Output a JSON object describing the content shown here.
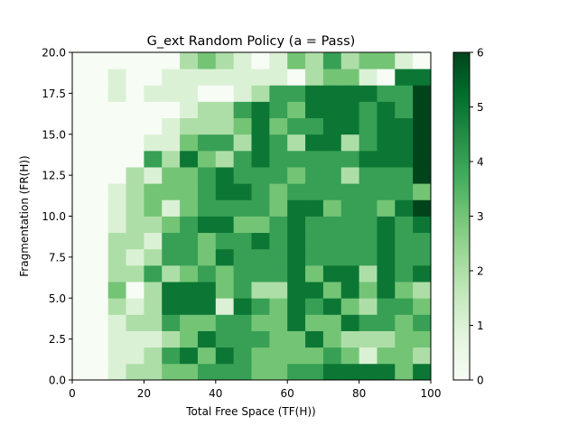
{
  "chart_data": {
    "type": "heatmap",
    "title": "G_ext Random Policy (a = Pass)",
    "xlabel": "Total Free Space (TF(H))",
    "ylabel": "Fragmentation (FR(H))",
    "xlim": [
      0,
      100
    ],
    "ylim": [
      0,
      20
    ],
    "x_ticks": [
      "0",
      "20",
      "40",
      "60",
      "80",
      "100"
    ],
    "y_ticks": [
      "0.0",
      "2.5",
      "5.0",
      "7.5",
      "10.0",
      "12.5",
      "15.0",
      "17.5",
      "20.0"
    ],
    "colorbar": {
      "colormap": "Greens",
      "range": [
        0,
        6
      ],
      "ticks": [
        "0",
        "1",
        "2",
        "3",
        "4",
        "5",
        "6"
      ]
    },
    "bin_size": {
      "x": 5,
      "y": 1
    },
    "colors": {
      "low": "#f7fcf5",
      "high": "#00441b"
    },
    "grid": false,
    "row_order": "bottom to top (y = 0..1 first)",
    "counts": [
      [
        0,
        0,
        1,
        2,
        2,
        3,
        3,
        4,
        4,
        4,
        3,
        3,
        4,
        4,
        5,
        5,
        5,
        5,
        3,
        5
      ],
      [
        0,
        0,
        1,
        1,
        2,
        4,
        5,
        3,
        5,
        4,
        3,
        3,
        3,
        3,
        4,
        3,
        1,
        3,
        3,
        2
      ],
      [
        0,
        0,
        1,
        1,
        1,
        2,
        3,
        5,
        4,
        4,
        4,
        3,
        3,
        5,
        3,
        2,
        2,
        2,
        3,
        3
      ],
      [
        0,
        0,
        1,
        2,
        2,
        4,
        3,
        3,
        4,
        4,
        3,
        3,
        5,
        3,
        3,
        5,
        4,
        4,
        3,
        4
      ],
      [
        0,
        0,
        2,
        1,
        2,
        5,
        5,
        5,
        1,
        5,
        4,
        3,
        5,
        4,
        5,
        3,
        2,
        4,
        4,
        3
      ],
      [
        0,
        0,
        3,
        0,
        2,
        5,
        5,
        5,
        3,
        4,
        2,
        2,
        5,
        5,
        3,
        5,
        3,
        5,
        3,
        2
      ],
      [
        0,
        0,
        2,
        2,
        4,
        2,
        3,
        4,
        3,
        4,
        4,
        4,
        5,
        3,
        5,
        5,
        2,
        5,
        4,
        5
      ],
      [
        0,
        0,
        2,
        1,
        2,
        4,
        4,
        3,
        5,
        4,
        4,
        4,
        5,
        4,
        4,
        4,
        4,
        5,
        4,
        4
      ],
      [
        0,
        0,
        2,
        2,
        1,
        4,
        4,
        3,
        4,
        4,
        5,
        4,
        5,
        4,
        4,
        4,
        4,
        5,
        4,
        4
      ],
      [
        0,
        0,
        1,
        2,
        2,
        3,
        4,
        5,
        5,
        3,
        3,
        4,
        5,
        4,
        4,
        4,
        4,
        5,
        4,
        5
      ],
      [
        0,
        0,
        1,
        2,
        3,
        1,
        3,
        4,
        4,
        4,
        4,
        3,
        5,
        5,
        3,
        4,
        4,
        3,
        5,
        6
      ],
      [
        0,
        0,
        1,
        2,
        3,
        3,
        3,
        4,
        5,
        5,
        4,
        3,
        4,
        4,
        4,
        4,
        4,
        4,
        4,
        3
      ],
      [
        0,
        0,
        0,
        2,
        1,
        3,
        3,
        4,
        5,
        4,
        4,
        4,
        3,
        4,
        4,
        2,
        4,
        4,
        4,
        6
      ],
      [
        0,
        0,
        0,
        0,
        4,
        2,
        5,
        3,
        2,
        4,
        5,
        4,
        4,
        4,
        4,
        4,
        5,
        5,
        5,
        6
      ],
      [
        0,
        0,
        0,
        0,
        1,
        1,
        3,
        4,
        4,
        2,
        5,
        4,
        2,
        5,
        5,
        2,
        4,
        5,
        5,
        6
      ],
      [
        0,
        0,
        0,
        0,
        0,
        1,
        2,
        2,
        2,
        3,
        5,
        3,
        4,
        4,
        5,
        5,
        4,
        5,
        5,
        6
      ],
      [
        0,
        0,
        0,
        0,
        0,
        0,
        1,
        2,
        2,
        4,
        5,
        4,
        3,
        5,
        5,
        5,
        4,
        5,
        4,
        6
      ],
      [
        0,
        0,
        1,
        0,
        1,
        1,
        1,
        0,
        0,
        1,
        2,
        4,
        4,
        5,
        5,
        5,
        5,
        4,
        4,
        6
      ],
      [
        0,
        0,
        1,
        0,
        0,
        1,
        1,
        1,
        1,
        1,
        1,
        1,
        0,
        2,
        3,
        3,
        1,
        0,
        5,
        5
      ],
      [
        0,
        0,
        0,
        0,
        0,
        0,
        2,
        3,
        2,
        1,
        0,
        1,
        3,
        2,
        4,
        2,
        3,
        3,
        1,
        0
      ]
    ]
  }
}
